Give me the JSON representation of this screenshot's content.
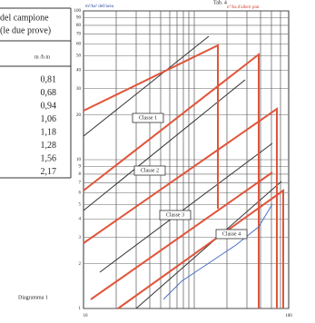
{
  "caption": "Tab. 4",
  "table": {
    "header": [
      "del campione",
      "(le due prove)"
    ],
    "unit": "m /h m",
    "rows": [
      "0,81",
      "0,68",
      "0,94",
      "1,06",
      "1,18",
      "1,28",
      "1,56",
      "2,17"
    ]
  },
  "chart": {
    "title": "Diagramma 1",
    "left_axis_title": "m³/ha² dell'area",
    "right_axis_title": "n°/ha d'alberi piat",
    "yticks": [
      100,
      90,
      80,
      70,
      60,
      50,
      40,
      30,
      20,
      10,
      9,
      8,
      7,
      6,
      5,
      4,
      3,
      2,
      1
    ],
    "x_labels": [
      "10",
      "100"
    ],
    "classes": [
      "Classe 1",
      "Classe 2",
      "Classe 3",
      "Classe 4"
    ]
  }
}
